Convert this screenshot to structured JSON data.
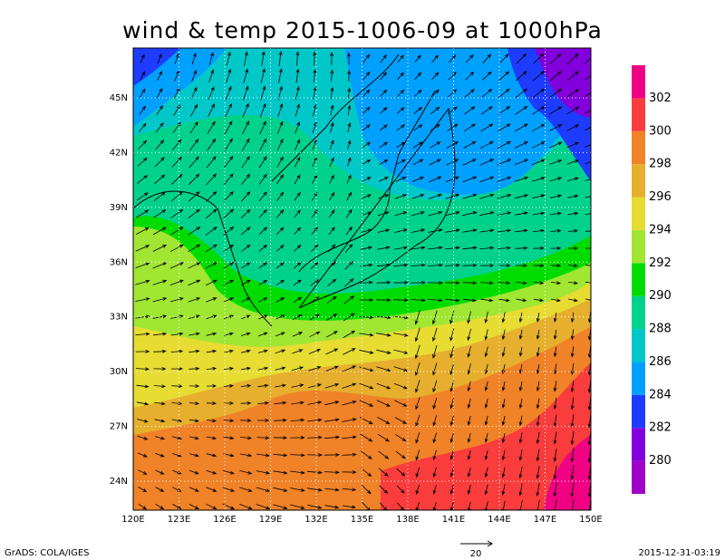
{
  "title": "wind & temp 2015-1006-09 at 1000hPa",
  "x_axis_labels": [
    "120E",
    "123E",
    "126E",
    "129E",
    "132E",
    "135E",
    "138E",
    "141E",
    "144E",
    "147E",
    "150E"
  ],
  "y_axis_labels": [
    "24N",
    "27N",
    "30N",
    "33N",
    "36N",
    "39N",
    "42N",
    "45N"
  ],
  "colorbar": {
    "labels": [
      280,
      282,
      284,
      286,
      288,
      290,
      292,
      294,
      296,
      298,
      300,
      302
    ],
    "colors": [
      "#a000c8",
      "#8200dc",
      "#1e3cff",
      "#00a0ff",
      "#00c8c8",
      "#00d28c",
      "#00dc00",
      "#a0e632",
      "#e6dc32",
      "#e6af2d",
      "#f08228",
      "#fa3c3c",
      "#f00082"
    ]
  },
  "vector_reference": "20",
  "footer_left": "GrADS: COLA/IGES",
  "footer_right": "2015-12-31-03:19"
}
